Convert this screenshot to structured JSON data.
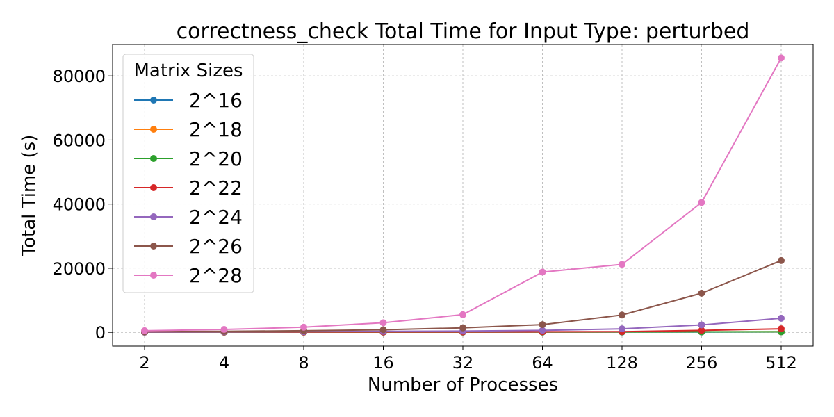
{
  "chart_data": {
    "type": "line",
    "title": "correctness_check Total Time for Input Type: perturbed",
    "xlabel": "Number of Processes",
    "ylabel": "Total Time (s)",
    "x": [
      2,
      4,
      8,
      16,
      32,
      64,
      128,
      256,
      512
    ],
    "x_scale": "log2",
    "ylim": [
      -4300,
      89800
    ],
    "yticks": [
      0,
      20000,
      40000,
      60000,
      80000
    ],
    "grid": true,
    "legend": {
      "title": "Matrix Sizes",
      "placement": "top-left"
    },
    "series": [
      {
        "name": "2^16",
        "color": "#1f77b4",
        "values": [
          40,
          45,
          50,
          55,
          60,
          70,
          80,
          100,
          120
        ]
      },
      {
        "name": "2^18",
        "color": "#ff7f0e",
        "values": [
          50,
          60,
          70,
          80,
          90,
          100,
          120,
          140,
          160
        ]
      },
      {
        "name": "2^20",
        "color": "#2ca02c",
        "values": [
          60,
          70,
          80,
          90,
          100,
          110,
          130,
          150,
          170
        ]
      },
      {
        "name": "2^22",
        "color": "#d62728",
        "values": [
          80,
          90,
          100,
          110,
          130,
          160,
          200,
          600,
          1100
        ]
      },
      {
        "name": "2^24",
        "color": "#9467bd",
        "values": [
          100,
          150,
          200,
          300,
          400,
          600,
          1100,
          2300,
          4400
        ]
      },
      {
        "name": "2^26",
        "color": "#8c564b",
        "values": [
          200,
          300,
          500,
          800,
          1400,
          2400,
          5400,
          12200,
          22400
        ]
      },
      {
        "name": "2^28",
        "color": "#e377c2",
        "values": [
          500,
          900,
          1600,
          3000,
          5500,
          18800,
          21200,
          40500,
          85600
        ]
      }
    ]
  }
}
